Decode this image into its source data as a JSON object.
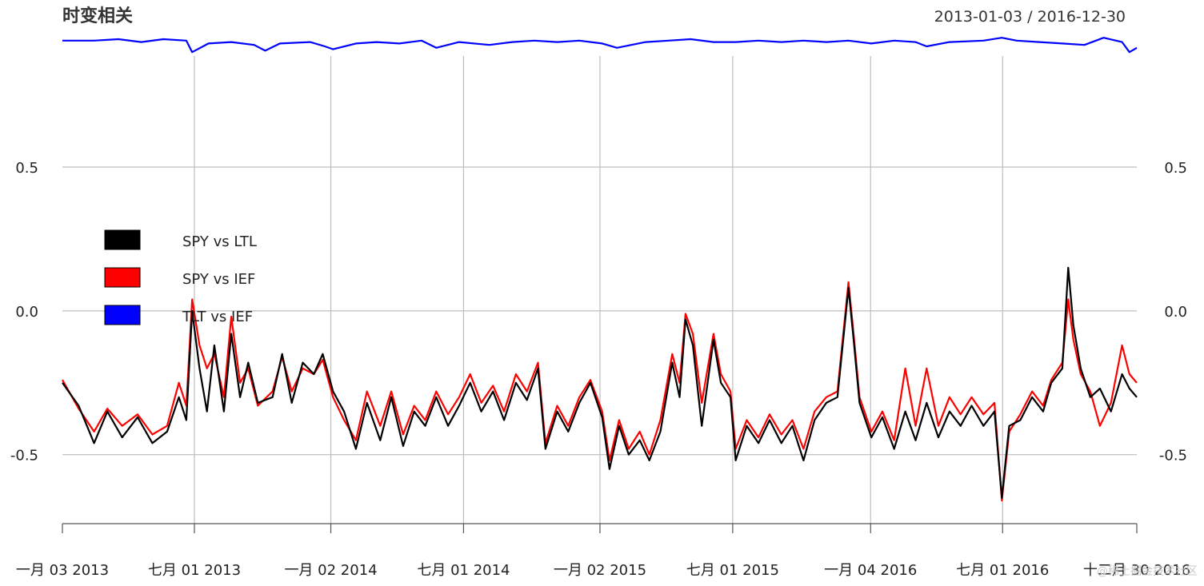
{
  "chart_data": {
    "type": "line",
    "title": "时变相关",
    "date_range": "2013-01-03 / 2016-12-30",
    "x_start": "2013-01-03",
    "x_end": "2016-12-30",
    "ylim": [
      -0.74,
      0.97
    ],
    "yticks": [
      -0.5,
      0.0,
      0.5
    ],
    "ytick_labels": [
      "-0.5",
      "0.0",
      "0.5"
    ],
    "xtick_dates": [
      "2013-01-03",
      "2013-07-01",
      "2014-01-02",
      "2014-07-01",
      "2015-01-02",
      "2015-07-01",
      "2016-01-04",
      "2016-07-01",
      "2016-12-30"
    ],
    "xtick_labels": [
      "一月 03 2013",
      "七月 01 2013",
      "一月 02 2014",
      "七月 01 2014",
      "一月 02 2015",
      "七月 01 2015",
      "一月 04 2016",
      "七月 01 2016",
      "十二月 30 2016"
    ],
    "grid": true,
    "legend_position": "left",
    "series": [
      {
        "name": "SPY vs LTL",
        "color": "#000000",
        "points": [
          [
            "2013-01-03",
            -0.25
          ],
          [
            "2013-01-25",
            -0.33
          ],
          [
            "2013-02-15",
            -0.46
          ],
          [
            "2013-03-05",
            -0.35
          ],
          [
            "2013-03-25",
            -0.44
          ],
          [
            "2013-04-15",
            -0.37
          ],
          [
            "2013-05-05",
            -0.46
          ],
          [
            "2013-05-25",
            -0.42
          ],
          [
            "2013-06-10",
            -0.3
          ],
          [
            "2013-06-20",
            -0.38
          ],
          [
            "2013-06-28",
            0.0
          ],
          [
            "2013-07-08",
            -0.2
          ],
          [
            "2013-07-18",
            -0.35
          ],
          [
            "2013-07-28",
            -0.12
          ],
          [
            "2013-08-10",
            -0.35
          ],
          [
            "2013-08-20",
            -0.08
          ],
          [
            "2013-09-01",
            -0.3
          ],
          [
            "2013-09-12",
            -0.18
          ],
          [
            "2013-09-25",
            -0.32
          ],
          [
            "2013-10-15",
            -0.3
          ],
          [
            "2013-10-28",
            -0.15
          ],
          [
            "2013-11-10",
            -0.32
          ],
          [
            "2013-11-25",
            -0.18
          ],
          [
            "2013-12-10",
            -0.22
          ],
          [
            "2013-12-22",
            -0.15
          ],
          [
            "2014-01-05",
            -0.28
          ],
          [
            "2014-01-20",
            -0.35
          ],
          [
            "2014-02-05",
            -0.48
          ],
          [
            "2014-02-20",
            -0.32
          ],
          [
            "2014-03-10",
            -0.45
          ],
          [
            "2014-03-25",
            -0.3
          ],
          [
            "2014-04-10",
            -0.47
          ],
          [
            "2014-04-25",
            -0.35
          ],
          [
            "2014-05-10",
            -0.4
          ],
          [
            "2014-05-25",
            -0.3
          ],
          [
            "2014-06-10",
            -0.4
          ],
          [
            "2014-06-25",
            -0.33
          ],
          [
            "2014-07-10",
            -0.25
          ],
          [
            "2014-07-25",
            -0.35
          ],
          [
            "2014-08-10",
            -0.28
          ],
          [
            "2014-08-25",
            -0.38
          ],
          [
            "2014-09-10",
            -0.25
          ],
          [
            "2014-09-25",
            -0.31
          ],
          [
            "2014-10-10",
            -0.2
          ],
          [
            "2014-10-20",
            -0.48
          ],
          [
            "2014-11-05",
            -0.35
          ],
          [
            "2014-11-20",
            -0.42
          ],
          [
            "2014-12-05",
            -0.32
          ],
          [
            "2014-12-20",
            -0.25
          ],
          [
            "2015-01-05",
            -0.37
          ],
          [
            "2015-01-15",
            -0.55
          ],
          [
            "2015-01-28",
            -0.4
          ],
          [
            "2015-02-10",
            -0.5
          ],
          [
            "2015-02-25",
            -0.45
          ],
          [
            "2015-03-10",
            -0.52
          ],
          [
            "2015-03-25",
            -0.42
          ],
          [
            "2015-04-10",
            -0.18
          ],
          [
            "2015-04-20",
            -0.3
          ],
          [
            "2015-04-28",
            -0.03
          ],
          [
            "2015-05-08",
            -0.12
          ],
          [
            "2015-05-20",
            -0.4
          ],
          [
            "2015-06-05",
            -0.1
          ],
          [
            "2015-06-15",
            -0.25
          ],
          [
            "2015-06-28",
            -0.3
          ],
          [
            "2015-07-05",
            -0.52
          ],
          [
            "2015-07-20",
            -0.4
          ],
          [
            "2015-08-05",
            -0.46
          ],
          [
            "2015-08-20",
            -0.38
          ],
          [
            "2015-09-05",
            -0.46
          ],
          [
            "2015-09-20",
            -0.4
          ],
          [
            "2015-10-05",
            -0.52
          ],
          [
            "2015-10-20",
            -0.38
          ],
          [
            "2015-11-05",
            -0.32
          ],
          [
            "2015-11-20",
            -0.3
          ],
          [
            "2015-12-05",
            0.08
          ],
          [
            "2015-12-12",
            -0.1
          ],
          [
            "2015-12-20",
            -0.32
          ],
          [
            "2016-01-05",
            -0.44
          ],
          [
            "2016-01-20",
            -0.37
          ],
          [
            "2016-02-05",
            -0.48
          ],
          [
            "2016-02-20",
            -0.35
          ],
          [
            "2016-03-05",
            -0.45
          ],
          [
            "2016-03-20",
            -0.32
          ],
          [
            "2016-04-05",
            -0.44
          ],
          [
            "2016-04-20",
            -0.35
          ],
          [
            "2016-05-05",
            -0.4
          ],
          [
            "2016-05-20",
            -0.33
          ],
          [
            "2016-06-05",
            -0.4
          ],
          [
            "2016-06-20",
            -0.35
          ],
          [
            "2016-06-30",
            -0.65
          ],
          [
            "2016-07-10",
            -0.4
          ],
          [
            "2016-07-25",
            -0.38
          ],
          [
            "2016-08-10",
            -0.3
          ],
          [
            "2016-08-25",
            -0.35
          ],
          [
            "2016-09-05",
            -0.25
          ],
          [
            "2016-09-20",
            -0.2
          ],
          [
            "2016-09-28",
            0.15
          ],
          [
            "2016-10-05",
            -0.05
          ],
          [
            "2016-10-15",
            -0.2
          ],
          [
            "2016-10-28",
            -0.3
          ],
          [
            "2016-11-10",
            -0.27
          ],
          [
            "2016-11-25",
            -0.35
          ],
          [
            "2016-12-10",
            -0.22
          ],
          [
            "2016-12-20",
            -0.27
          ],
          [
            "2016-12-30",
            -0.3
          ]
        ]
      },
      {
        "name": "SPY vs IEF",
        "color": "#ff0000",
        "points": [
          [
            "2013-01-03",
            -0.24
          ],
          [
            "2013-01-25",
            -0.34
          ],
          [
            "2013-02-15",
            -0.42
          ],
          [
            "2013-03-05",
            -0.34
          ],
          [
            "2013-03-25",
            -0.4
          ],
          [
            "2013-04-15",
            -0.36
          ],
          [
            "2013-05-05",
            -0.43
          ],
          [
            "2013-05-25",
            -0.4
          ],
          [
            "2013-06-10",
            -0.25
          ],
          [
            "2013-06-20",
            -0.33
          ],
          [
            "2013-06-28",
            0.04
          ],
          [
            "2013-07-08",
            -0.12
          ],
          [
            "2013-07-18",
            -0.2
          ],
          [
            "2013-07-28",
            -0.15
          ],
          [
            "2013-08-10",
            -0.3
          ],
          [
            "2013-08-20",
            -0.02
          ],
          [
            "2013-09-01",
            -0.25
          ],
          [
            "2013-09-12",
            -0.2
          ],
          [
            "2013-09-25",
            -0.33
          ],
          [
            "2013-10-15",
            -0.28
          ],
          [
            "2013-10-28",
            -0.16
          ],
          [
            "2013-11-10",
            -0.28
          ],
          [
            "2013-11-25",
            -0.2
          ],
          [
            "2013-12-10",
            -0.22
          ],
          [
            "2013-12-22",
            -0.17
          ],
          [
            "2014-01-05",
            -0.3
          ],
          [
            "2014-01-20",
            -0.38
          ],
          [
            "2014-02-05",
            -0.45
          ],
          [
            "2014-02-20",
            -0.28
          ],
          [
            "2014-03-10",
            -0.4
          ],
          [
            "2014-03-25",
            -0.28
          ],
          [
            "2014-04-10",
            -0.43
          ],
          [
            "2014-04-25",
            -0.33
          ],
          [
            "2014-05-10",
            -0.38
          ],
          [
            "2014-05-25",
            -0.28
          ],
          [
            "2014-06-10",
            -0.36
          ],
          [
            "2014-06-25",
            -0.3
          ],
          [
            "2014-07-10",
            -0.22
          ],
          [
            "2014-07-25",
            -0.32
          ],
          [
            "2014-08-10",
            -0.26
          ],
          [
            "2014-08-25",
            -0.35
          ],
          [
            "2014-09-10",
            -0.22
          ],
          [
            "2014-09-25",
            -0.28
          ],
          [
            "2014-10-10",
            -0.18
          ],
          [
            "2014-10-20",
            -0.46
          ],
          [
            "2014-11-05",
            -0.33
          ],
          [
            "2014-11-20",
            -0.4
          ],
          [
            "2014-12-05",
            -0.3
          ],
          [
            "2014-12-20",
            -0.24
          ],
          [
            "2015-01-05",
            -0.35
          ],
          [
            "2015-01-15",
            -0.52
          ],
          [
            "2015-01-28",
            -0.38
          ],
          [
            "2015-02-10",
            -0.48
          ],
          [
            "2015-02-25",
            -0.42
          ],
          [
            "2015-03-10",
            -0.5
          ],
          [
            "2015-03-25",
            -0.38
          ],
          [
            "2015-04-10",
            -0.15
          ],
          [
            "2015-04-20",
            -0.25
          ],
          [
            "2015-04-28",
            -0.01
          ],
          [
            "2015-05-08",
            -0.08
          ],
          [
            "2015-05-20",
            -0.32
          ],
          [
            "2015-06-05",
            -0.08
          ],
          [
            "2015-06-15",
            -0.22
          ],
          [
            "2015-06-28",
            -0.28
          ],
          [
            "2015-07-05",
            -0.48
          ],
          [
            "2015-07-20",
            -0.38
          ],
          [
            "2015-08-05",
            -0.44
          ],
          [
            "2015-08-20",
            -0.36
          ],
          [
            "2015-09-05",
            -0.43
          ],
          [
            "2015-09-20",
            -0.38
          ],
          [
            "2015-10-05",
            -0.48
          ],
          [
            "2015-10-20",
            -0.35
          ],
          [
            "2015-11-05",
            -0.3
          ],
          [
            "2015-11-20",
            -0.28
          ],
          [
            "2015-12-05",
            0.1
          ],
          [
            "2015-12-12",
            -0.08
          ],
          [
            "2015-12-20",
            -0.3
          ],
          [
            "2016-01-05",
            -0.42
          ],
          [
            "2016-01-20",
            -0.35
          ],
          [
            "2016-02-05",
            -0.45
          ],
          [
            "2016-02-20",
            -0.2
          ],
          [
            "2016-03-05",
            -0.4
          ],
          [
            "2016-03-20",
            -0.2
          ],
          [
            "2016-04-05",
            -0.4
          ],
          [
            "2016-04-20",
            -0.3
          ],
          [
            "2016-05-05",
            -0.36
          ],
          [
            "2016-05-20",
            -0.3
          ],
          [
            "2016-06-05",
            -0.36
          ],
          [
            "2016-06-20",
            -0.32
          ],
          [
            "2016-06-30",
            -0.66
          ],
          [
            "2016-07-10",
            -0.42
          ],
          [
            "2016-07-25",
            -0.36
          ],
          [
            "2016-08-10",
            -0.28
          ],
          [
            "2016-08-25",
            -0.33
          ],
          [
            "2016-09-05",
            -0.24
          ],
          [
            "2016-09-20",
            -0.18
          ],
          [
            "2016-09-28",
            0.04
          ],
          [
            "2016-10-05",
            -0.1
          ],
          [
            "2016-10-15",
            -0.22
          ],
          [
            "2016-10-28",
            -0.28
          ],
          [
            "2016-11-10",
            -0.4
          ],
          [
            "2016-11-25",
            -0.32
          ],
          [
            "2016-12-10",
            -0.12
          ],
          [
            "2016-12-20",
            -0.22
          ],
          [
            "2016-12-30",
            -0.25
          ]
        ]
      },
      {
        "name": "TLT vs IEF",
        "color": "#0000ff",
        "points": [
          [
            "2013-01-03",
            0.94
          ],
          [
            "2013-02-15",
            0.94
          ],
          [
            "2013-03-20",
            0.945
          ],
          [
            "2013-04-20",
            0.935
          ],
          [
            "2013-05-20",
            0.945
          ],
          [
            "2013-06-20",
            0.94
          ],
          [
            "2013-06-28",
            0.9
          ],
          [
            "2013-07-20",
            0.93
          ],
          [
            "2013-08-20",
            0.935
          ],
          [
            "2013-09-20",
            0.925
          ],
          [
            "2013-10-05",
            0.905
          ],
          [
            "2013-10-25",
            0.93
          ],
          [
            "2013-12-05",
            0.935
          ],
          [
            "2013-12-25",
            0.92
          ],
          [
            "2014-01-05",
            0.91
          ],
          [
            "2014-02-05",
            0.93
          ],
          [
            "2014-03-05",
            0.935
          ],
          [
            "2014-04-05",
            0.93
          ],
          [
            "2014-05-05",
            0.94
          ],
          [
            "2014-05-25",
            0.915
          ],
          [
            "2014-06-25",
            0.935
          ],
          [
            "2014-08-05",
            0.925
          ],
          [
            "2014-09-05",
            0.935
          ],
          [
            "2014-10-05",
            0.94
          ],
          [
            "2014-11-05",
            0.935
          ],
          [
            "2014-12-05",
            0.94
          ],
          [
            "2015-01-05",
            0.93
          ],
          [
            "2015-01-25",
            0.915
          ],
          [
            "2015-03-05",
            0.935
          ],
          [
            "2015-04-05",
            0.94
          ],
          [
            "2015-05-05",
            0.945
          ],
          [
            "2015-06-05",
            0.935
          ],
          [
            "2015-07-05",
            0.935
          ],
          [
            "2015-08-05",
            0.94
          ],
          [
            "2015-09-05",
            0.935
          ],
          [
            "2015-10-05",
            0.94
          ],
          [
            "2015-11-05",
            0.935
          ],
          [
            "2015-12-05",
            0.94
          ],
          [
            "2016-01-05",
            0.93
          ],
          [
            "2016-02-05",
            0.94
          ],
          [
            "2016-03-05",
            0.935
          ],
          [
            "2016-03-20",
            0.92
          ],
          [
            "2016-04-20",
            0.935
          ],
          [
            "2016-06-05",
            0.94
          ],
          [
            "2016-06-30",
            0.95
          ],
          [
            "2016-07-20",
            0.94
          ],
          [
            "2016-08-20",
            0.935
          ],
          [
            "2016-09-20",
            0.93
          ],
          [
            "2016-10-20",
            0.925
          ],
          [
            "2016-11-15",
            0.95
          ],
          [
            "2016-12-10",
            0.935
          ],
          [
            "2016-12-20",
            0.9
          ],
          [
            "2016-12-30",
            0.915
          ]
        ]
      }
    ]
  },
  "watermark": "@稀土掘金技术社区"
}
